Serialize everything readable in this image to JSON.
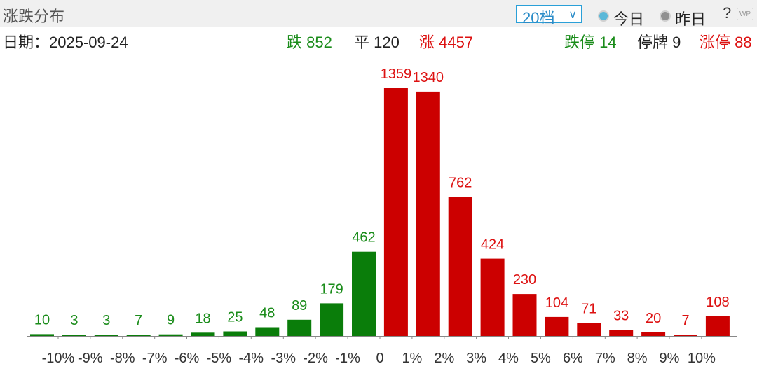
{
  "header": {
    "title": "涨跌分布",
    "range_select": "20档",
    "radio_today": "今日",
    "radio_yesterday": "昨日",
    "help": "?",
    "wp_label": "WP"
  },
  "summary": {
    "date_label": "日期：",
    "date": "2025-09-24",
    "down_label": "跌",
    "down_value": "852",
    "flat_label": "平",
    "flat_value": "120",
    "up_label": "涨",
    "up_value": "4457",
    "limit_down_label": "跌停",
    "limit_down_value": "14",
    "suspended_label": "停牌",
    "suspended_value": "9",
    "limit_up_label": "涨停",
    "limit_up_value": "88"
  },
  "colors": {
    "down": "#0a7d0a",
    "up": "#cc0000",
    "down_text": "#1a8c1a",
    "up_text": "#dd1111",
    "accent": "#2aa0d8"
  },
  "chart_data": {
    "type": "bar",
    "bars": [
      {
        "label": "10",
        "value": 10,
        "side": "down"
      },
      {
        "label": "3",
        "value": 3,
        "side": "down"
      },
      {
        "label": "3",
        "value": 3,
        "side": "down"
      },
      {
        "label": "7",
        "value": 7,
        "side": "down"
      },
      {
        "label": "9",
        "value": 9,
        "side": "down"
      },
      {
        "label": "18",
        "value": 18,
        "side": "down"
      },
      {
        "label": "25",
        "value": 25,
        "side": "down"
      },
      {
        "label": "48",
        "value": 48,
        "side": "down"
      },
      {
        "label": "89",
        "value": 89,
        "side": "down"
      },
      {
        "label": "179",
        "value": 179,
        "side": "down"
      },
      {
        "label": "462",
        "value": 462,
        "side": "down"
      },
      {
        "label": "1359",
        "value": 1359,
        "side": "up"
      },
      {
        "label": "1340",
        "value": 1340,
        "side": "up"
      },
      {
        "label": "762",
        "value": 762,
        "side": "up"
      },
      {
        "label": "424",
        "value": 424,
        "side": "up"
      },
      {
        "label": "230",
        "value": 230,
        "side": "up"
      },
      {
        "label": "104",
        "value": 104,
        "side": "up"
      },
      {
        "label": "71",
        "value": 71,
        "side": "up"
      },
      {
        "label": "33",
        "value": 33,
        "side": "up"
      },
      {
        "label": "20",
        "value": 20,
        "side": "up"
      },
      {
        "label": "7",
        "value": 7,
        "side": "up"
      },
      {
        "label": "108",
        "value": 108,
        "side": "up"
      }
    ],
    "tick_labels": [
      "-10%",
      "-9%",
      "-8%",
      "-7%",
      "-6%",
      "-5%",
      "-4%",
      "-3%",
      "-2%",
      "-1%",
      "0",
      "1%",
      "2%",
      "3%",
      "4%",
      "5%",
      "6%",
      "7%",
      "8%",
      "9%",
      "10%"
    ],
    "ylim": [
      0,
      1359
    ],
    "grid": false,
    "legend": "none"
  }
}
